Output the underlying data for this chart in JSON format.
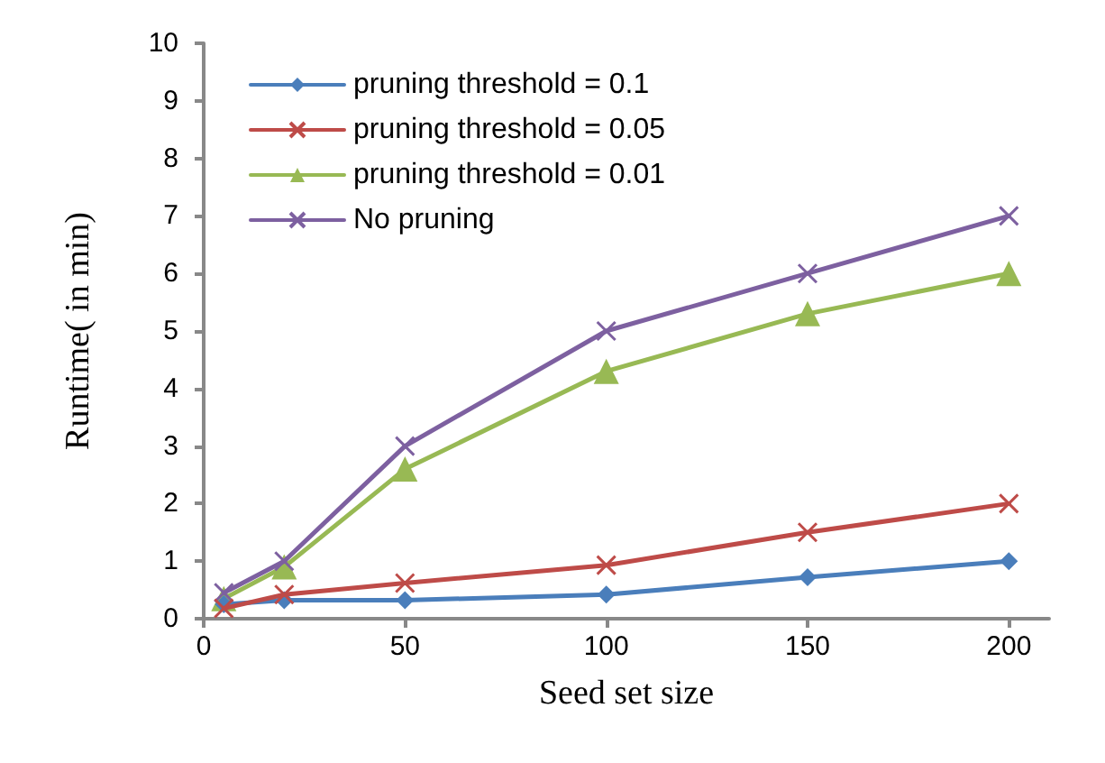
{
  "chart_data": {
    "type": "line",
    "xlabel": "Seed set size",
    "ylabel": "Runtime( in min)",
    "x": [
      5,
      20,
      50,
      100,
      150,
      200
    ],
    "series": [
      {
        "name": "pruning threshold = 0.1",
        "color": "#4a7ebb",
        "marker": "diamond",
        "values": [
          0.25,
          0.32,
          0.32,
          0.42,
          0.72,
          1.0
        ]
      },
      {
        "name": "pruning threshold = 0.05",
        "color": "#be4b48",
        "marker": "cross",
        "values": [
          0.18,
          0.42,
          0.62,
          0.93,
          1.5,
          2.0
        ]
      },
      {
        "name": "pruning threshold = 0.01",
        "color": "#98b954",
        "marker": "triangle",
        "values": [
          0.35,
          0.9,
          2.6,
          4.3,
          5.3,
          6.0
        ]
      },
      {
        "name": "No pruning",
        "color": "#7d60a0",
        "marker": "cross",
        "values": [
          0.45,
          1.0,
          3.0,
          5.0,
          6.0,
          7.0
        ]
      }
    ],
    "xlim": [
      0,
      210
    ],
    "xticks": [
      0,
      50,
      100,
      150,
      200
    ],
    "ylim": [
      0,
      10
    ],
    "yticks": [
      0,
      1,
      2,
      3,
      4,
      5,
      6,
      7,
      8,
      9,
      10
    ],
    "grid": false,
    "legend": "top left",
    "line_style": "solid"
  }
}
